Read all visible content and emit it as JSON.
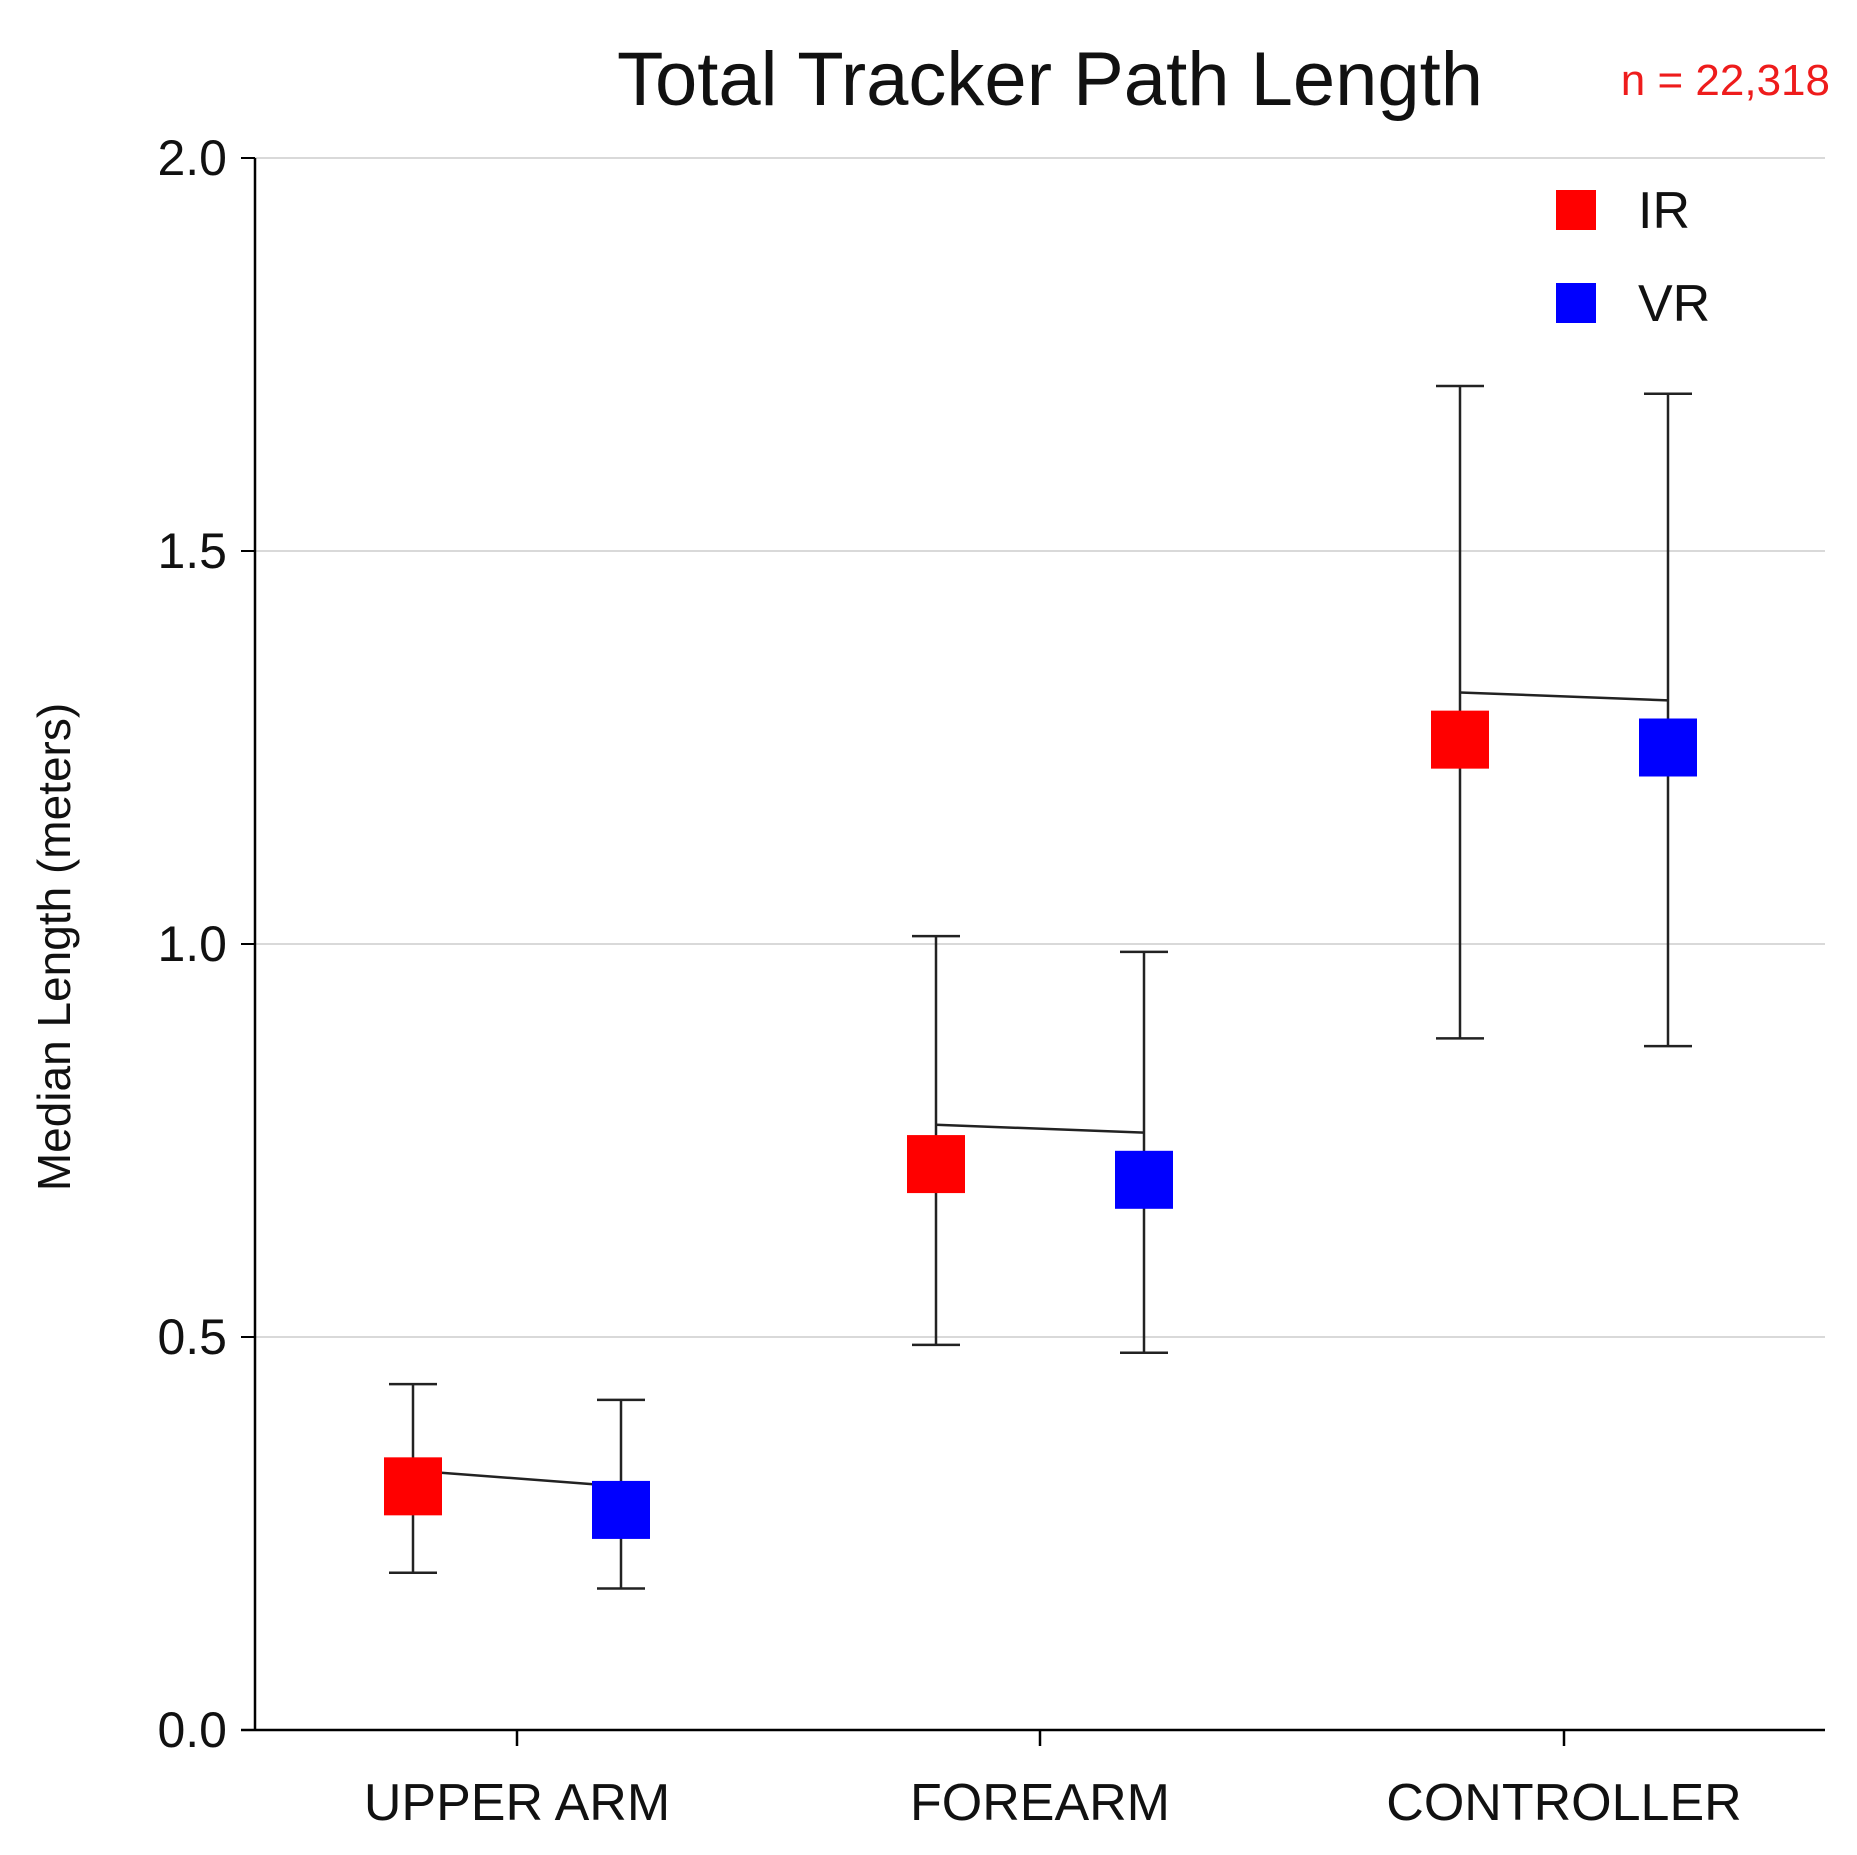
{
  "header": {
    "title": "Total Tracker Path Length",
    "n_label": "n = 22,318"
  },
  "colors": {
    "IR": "#ff0000",
    "VR": "#0000ff",
    "text_accent": "#ee1c1c",
    "grid": "#d9d9d9",
    "axis": "#000000"
  },
  "chart_data": {
    "type": "scatter",
    "title": "Total Tracker Path Length",
    "xlabel": "",
    "ylabel": "Median Length (meters)",
    "ylim": [
      0,
      2.0
    ],
    "yticks": [
      "0.0",
      "0.5",
      "1.0",
      "1.5",
      "2.0"
    ],
    "grid": true,
    "legend_position": "top-right",
    "categories": [
      "UPPER ARM",
      "FOREARM",
      "CONTROLLER"
    ],
    "series": [
      {
        "name": "IR",
        "values": [
          0.31,
          0.72,
          1.26
        ],
        "error_low": [
          0.2,
          0.49,
          0.88
        ],
        "error_high": [
          0.44,
          1.01,
          1.71
        ],
        "mean_line": [
          0.33,
          0.77,
          1.32
        ]
      },
      {
        "name": "VR",
        "values": [
          0.28,
          0.7,
          1.25
        ],
        "error_low": [
          0.18,
          0.48,
          0.87
        ],
        "error_high": [
          0.42,
          0.99,
          1.7
        ],
        "mean_line": [
          0.31,
          0.76,
          1.31
        ]
      }
    ]
  }
}
